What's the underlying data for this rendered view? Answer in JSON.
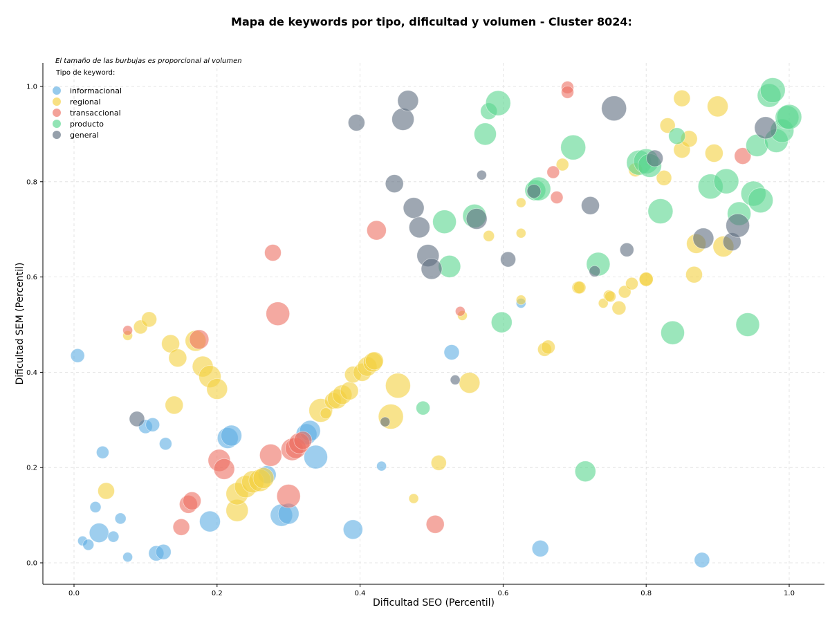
{
  "chart_data": {
    "type": "scatter",
    "title": "Mapa de keywords por tipo, dificultad y volumen - Cluster 8024:",
    "xlabel": "Dificultad SEO (Percentil)",
    "ylabel": "Dificultad SEM (Percentil)",
    "xlim": [
      -0.045,
      1.05
    ],
    "ylim": [
      -0.045,
      1.05
    ],
    "xticks": [
      "0.0",
      "0.2",
      "0.4",
      "0.6",
      "0.8",
      "1.0"
    ],
    "yticks": [
      "0.0",
      "0.2",
      "0.4",
      "0.6",
      "0.8",
      "1.0"
    ],
    "grid": true,
    "note": "El tamaño de las burbujas es proporcional al volumen",
    "legend_title": "Tipo de keyword:",
    "legend_position": "top-left",
    "series": [
      {
        "name": "informacional",
        "color": "#5dade2",
        "points": [
          [
            0.005,
            0.435,
            10
          ],
          [
            0.04,
            0.232,
            9
          ],
          [
            0.03,
            0.117,
            8
          ],
          [
            0.035,
            0.063,
            14
          ],
          [
            0.012,
            0.046,
            7
          ],
          [
            0.02,
            0.038,
            8
          ],
          [
            0.055,
            0.055,
            8
          ],
          [
            0.065,
            0.093,
            8
          ],
          [
            0.075,
            0.012,
            7
          ],
          [
            0.1,
            0.286,
            10
          ],
          [
            0.11,
            0.29,
            10
          ],
          [
            0.128,
            0.25,
            9
          ],
          [
            0.115,
            0.02,
            11
          ],
          [
            0.125,
            0.023,
            11
          ],
          [
            0.19,
            0.087,
            15
          ],
          [
            0.215,
            0.262,
            15
          ],
          [
            0.22,
            0.267,
            15
          ],
          [
            0.27,
            0.185,
            13
          ],
          [
            0.29,
            0.1,
            16
          ],
          [
            0.3,
            0.103,
            15
          ],
          [
            0.325,
            0.27,
            15
          ],
          [
            0.33,
            0.277,
            15
          ],
          [
            0.338,
            0.222,
            17
          ],
          [
            0.39,
            0.07,
            14
          ],
          [
            0.43,
            0.203,
            7
          ],
          [
            0.528,
            0.442,
            11
          ],
          [
            0.625,
            0.545,
            7
          ],
          [
            0.652,
            0.03,
            12
          ],
          [
            0.878,
            0.006,
            11
          ]
        ]
      },
      {
        "name": "regional",
        "color": "#f4d03f",
        "points": [
          [
            0.045,
            0.151,
            12
          ],
          [
            0.075,
            0.477,
            7
          ],
          [
            0.093,
            0.495,
            10
          ],
          [
            0.105,
            0.511,
            11
          ],
          [
            0.135,
            0.46,
            13
          ],
          [
            0.145,
            0.43,
            13
          ],
          [
            0.14,
            0.331,
            13
          ],
          [
            0.17,
            0.466,
            15
          ],
          [
            0.18,
            0.412,
            15
          ],
          [
            0.19,
            0.391,
            16
          ],
          [
            0.2,
            0.365,
            15
          ],
          [
            0.228,
            0.11,
            16
          ],
          [
            0.228,
            0.145,
            16
          ],
          [
            0.24,
            0.16,
            16
          ],
          [
            0.25,
            0.17,
            16
          ],
          [
            0.26,
            0.173,
            16
          ],
          [
            0.265,
            0.178,
            15
          ],
          [
            0.345,
            0.32,
            17
          ],
          [
            0.352,
            0.314,
            8
          ],
          [
            0.362,
            0.34,
            12
          ],
          [
            0.368,
            0.344,
            14
          ],
          [
            0.375,
            0.353,
            14
          ],
          [
            0.385,
            0.361,
            13
          ],
          [
            0.39,
            0.395,
            12
          ],
          [
            0.403,
            0.4,
            13
          ],
          [
            0.41,
            0.412,
            14
          ],
          [
            0.418,
            0.421,
            14
          ],
          [
            0.42,
            0.424,
            13
          ],
          [
            0.443,
            0.307,
            18
          ],
          [
            0.453,
            0.372,
            18
          ],
          [
            0.475,
            0.135,
            7
          ],
          [
            0.51,
            0.21,
            11
          ],
          [
            0.543,
            0.519,
            7
          ],
          [
            0.553,
            0.378,
            15
          ],
          [
            0.58,
            0.686,
            8
          ],
          [
            0.625,
            0.692,
            7
          ],
          [
            0.625,
            0.756,
            7
          ],
          [
            0.625,
            0.552,
            7
          ],
          [
            0.658,
            0.448,
            10
          ],
          [
            0.663,
            0.453,
            10
          ],
          [
            0.683,
            0.836,
            9
          ],
          [
            0.705,
            0.578,
            9
          ],
          [
            0.707,
            0.578,
            9
          ],
          [
            0.74,
            0.545,
            7
          ],
          [
            0.748,
            0.561,
            8
          ],
          [
            0.75,
            0.559,
            8
          ],
          [
            0.762,
            0.535,
            10
          ],
          [
            0.77,
            0.569,
            9
          ],
          [
            0.78,
            0.586,
            9
          ],
          [
            0.785,
            0.825,
            10
          ],
          [
            0.8,
            0.596,
            10
          ],
          [
            0.8,
            0.595,
            10
          ],
          [
            0.825,
            0.808,
            11
          ],
          [
            0.83,
            0.918,
            11
          ],
          [
            0.85,
            0.975,
            12
          ],
          [
            0.85,
            0.867,
            12
          ],
          [
            0.86,
            0.89,
            12
          ],
          [
            0.867,
            0.605,
            12
          ],
          [
            0.87,
            0.67,
            14
          ],
          [
            0.895,
            0.86,
            13
          ],
          [
            0.9,
            0.958,
            15
          ],
          [
            0.908,
            0.664,
            15
          ]
        ]
      },
      {
        "name": "transaccional",
        "color": "#ec7063",
        "points": [
          [
            0.075,
            0.488,
            7
          ],
          [
            0.175,
            0.469,
            14
          ],
          [
            0.15,
            0.075,
            12
          ],
          [
            0.16,
            0.123,
            13
          ],
          [
            0.165,
            0.13,
            13
          ],
          [
            0.203,
            0.215,
            16
          ],
          [
            0.21,
            0.197,
            15
          ],
          [
            0.275,
            0.226,
            16
          ],
          [
            0.278,
            0.651,
            12
          ],
          [
            0.285,
            0.523,
            17
          ],
          [
            0.3,
            0.14,
            17
          ],
          [
            0.305,
            0.238,
            16
          ],
          [
            0.31,
            0.241,
            15
          ],
          [
            0.315,
            0.251,
            15
          ],
          [
            0.32,
            0.257,
            13
          ],
          [
            0.423,
            0.698,
            14
          ],
          [
            0.505,
            0.081,
            13
          ],
          [
            0.54,
            0.528,
            7
          ],
          [
            0.67,
            0.82,
            9
          ],
          [
            0.675,
            0.767,
            9
          ],
          [
            0.69,
            0.998,
            9
          ],
          [
            0.69,
            0.988,
            9
          ],
          [
            0.935,
            0.854,
            12
          ]
        ]
      },
      {
        "name": "producto",
        "color": "#58d68d",
        "points": [
          [
            0.488,
            0.325,
            10
          ],
          [
            0.518,
            0.716,
            17
          ],
          [
            0.525,
            0.622,
            16
          ],
          [
            0.56,
            0.728,
            17
          ],
          [
            0.575,
            0.9,
            16
          ],
          [
            0.58,
            0.948,
            12
          ],
          [
            0.593,
            0.965,
            18
          ],
          [
            0.598,
            0.505,
            15
          ],
          [
            0.645,
            0.782,
            15
          ],
          [
            0.65,
            0.785,
            17
          ],
          [
            0.698,
            0.872,
            18
          ],
          [
            0.715,
            0.192,
            15
          ],
          [
            0.733,
            0.627,
            17
          ],
          [
            0.79,
            0.84,
            18
          ],
          [
            0.8,
            0.843,
            18
          ],
          [
            0.805,
            0.834,
            17
          ],
          [
            0.82,
            0.738,
            18
          ],
          [
            0.837,
            0.483,
            17
          ],
          [
            0.843,
            0.896,
            12
          ],
          [
            0.89,
            0.79,
            18
          ],
          [
            0.912,
            0.801,
            18
          ],
          [
            0.93,
            0.733,
            17
          ],
          [
            0.942,
            0.5,
            17
          ],
          [
            0.95,
            0.775,
            18
          ],
          [
            0.96,
            0.761,
            18
          ],
          [
            0.955,
            0.876,
            16
          ],
          [
            0.972,
            0.981,
            17
          ],
          [
            0.977,
            0.992,
            18
          ],
          [
            0.982,
            0.886,
            17
          ],
          [
            0.99,
            0.907,
            17
          ],
          [
            0.997,
            0.935,
            17
          ],
          [
            1.0,
            0.936,
            18
          ]
        ]
      },
      {
        "name": "general",
        "color": "#5d6d7e",
        "points": [
          [
            0.088,
            0.302,
            11
          ],
          [
            0.395,
            0.924,
            12
          ],
          [
            0.435,
            0.296,
            7
          ],
          [
            0.448,
            0.796,
            13
          ],
          [
            0.46,
            0.931,
            16
          ],
          [
            0.467,
            0.97,
            15
          ],
          [
            0.475,
            0.745,
            15
          ],
          [
            0.483,
            0.704,
            15
          ],
          [
            0.495,
            0.645,
            16
          ],
          [
            0.5,
            0.617,
            15
          ],
          [
            0.533,
            0.384,
            7
          ],
          [
            0.563,
            0.722,
            15
          ],
          [
            0.57,
            0.814,
            7
          ],
          [
            0.607,
            0.637,
            11
          ],
          [
            0.643,
            0.78,
            10
          ],
          [
            0.722,
            0.75,
            13
          ],
          [
            0.728,
            0.612,
            8
          ],
          [
            0.755,
            0.954,
            18
          ],
          [
            0.773,
            0.657,
            10
          ],
          [
            0.812,
            0.849,
            12
          ],
          [
            0.88,
            0.681,
            15
          ],
          [
            0.92,
            0.674,
            13
          ],
          [
            0.928,
            0.708,
            17
          ],
          [
            0.967,
            0.913,
            16
          ]
        ]
      }
    ]
  }
}
